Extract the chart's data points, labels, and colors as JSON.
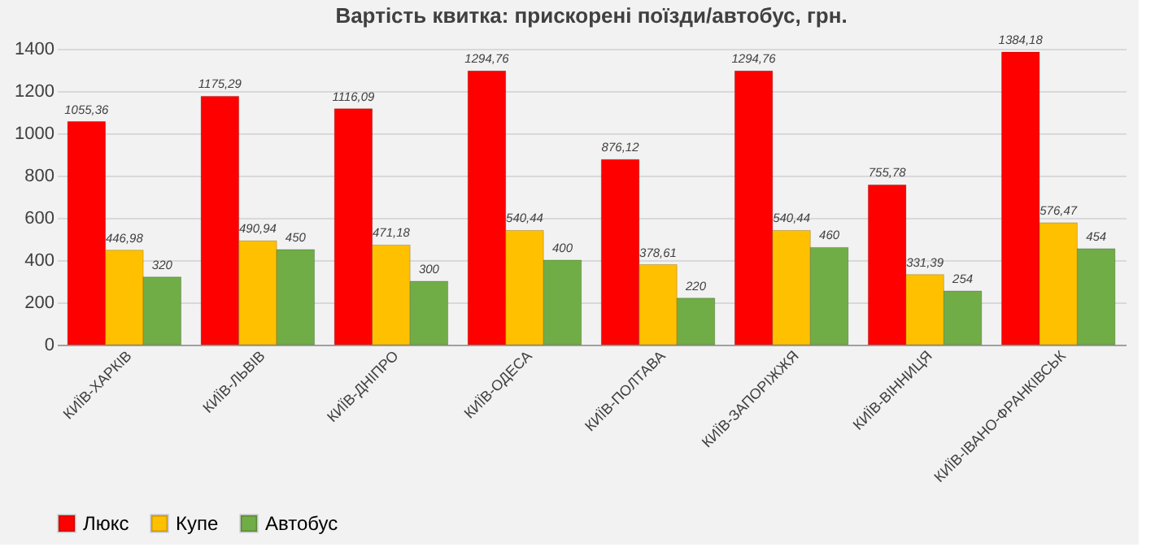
{
  "chart_data": {
    "type": "bar",
    "title": "Вартість квитка: прискорені поїзди/автобус, грн.",
    "categories": [
      "КИЇВ-ХАРКІВ",
      "КИЇВ-ЛЬВІВ",
      "КИЇВ-ДНІПРО",
      "КИЇВ-ОДЕСА",
      "КИЇВ-ПОЛТАВА",
      "КИЇВ-ЗАПОРІЖЖЯ",
      "КИЇВ-ВІННИЦЯ",
      "КИЇВ-ІВАНО-ФРАНКІВСЬК"
    ],
    "series": [
      {
        "name": "Люкс",
        "color": "#ff0000",
        "values": [
          1055.36,
          1175.29,
          1116.09,
          1294.76,
          876.12,
          1294.76,
          755.78,
          1384.18
        ],
        "value_labels": [
          "1055,36",
          "1175,29",
          "1116,09",
          "1294,76",
          "876,12",
          "1294,76",
          "755,78",
          "1384,18"
        ]
      },
      {
        "name": "Купе",
        "color": "#ffc000",
        "values": [
          446.98,
          490.94,
          471.18,
          540.44,
          378.61,
          540.44,
          331.39,
          576.47
        ],
        "value_labels": [
          "446,98",
          "490,94",
          "471,18",
          "540,44",
          "378,61",
          "540,44",
          "331,39",
          "576,47"
        ]
      },
      {
        "name": "Автобус",
        "color": "#70ad47",
        "values": [
          320,
          450,
          300,
          400,
          220,
          460,
          254,
          454
        ],
        "value_labels": [
          "320",
          "450",
          "300",
          "400",
          "220",
          "460",
          "254",
          "454"
        ]
      }
    ],
    "ylim": [
      0,
      1400
    ],
    "yticks": [
      0,
      200,
      400,
      600,
      800,
      1000,
      1200,
      1400
    ],
    "grid": "y",
    "legend": "bottom"
  }
}
